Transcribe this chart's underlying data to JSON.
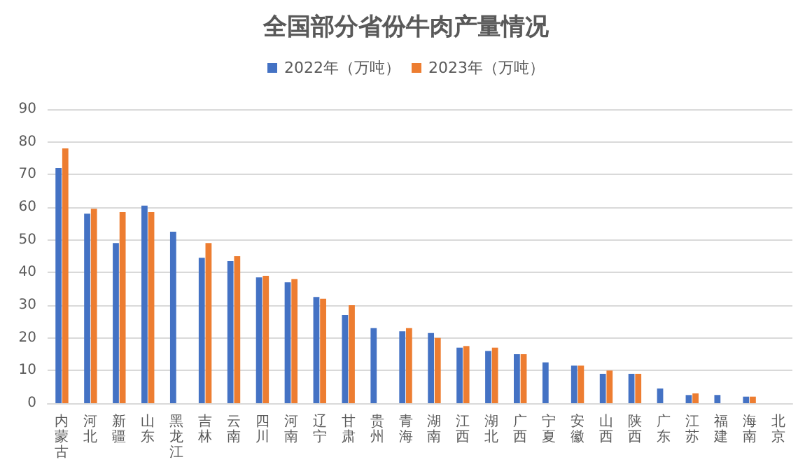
{
  "chart_data": {
    "type": "bar",
    "title": "全国部分省份牛肉产量情况",
    "categories": [
      "内蒙古",
      "河北",
      "新疆",
      "山东",
      "黑龙江",
      "吉林",
      "云南",
      "四川",
      "河南",
      "辽宁",
      "甘肃",
      "贵州",
      "青海",
      "湖南",
      "江西",
      "湖北",
      "广西",
      "宁夏",
      "安徽",
      "山西",
      "陕西",
      "广东",
      "江苏",
      "福建",
      "海南",
      "北京"
    ],
    "series": [
      {
        "name": "2022年（万吨）",
        "color": "#4472c4",
        "values": [
          72,
          58,
          49,
          60.5,
          52.5,
          44.5,
          43.5,
          38.5,
          37,
          32.5,
          27,
          23,
          22,
          21.5,
          17,
          16,
          15,
          12.5,
          11.5,
          9,
          9,
          4.5,
          2.5,
          2.5,
          2,
          null
        ]
      },
      {
        "name": "2023年（万吨）",
        "color": "#ed7d31",
        "values": [
          78,
          59.5,
          58.5,
          58.5,
          null,
          49,
          45,
          39,
          38,
          32,
          30,
          null,
          23,
          20,
          17.5,
          17,
          15,
          null,
          11.5,
          10,
          9,
          null,
          3,
          null,
          2,
          null
        ]
      }
    ],
    "ylim": [
      0,
      90
    ],
    "yticks": [
      0,
      10,
      20,
      30,
      40,
      50,
      60,
      70,
      80,
      90
    ],
    "grid": "y",
    "legend": "top"
  }
}
